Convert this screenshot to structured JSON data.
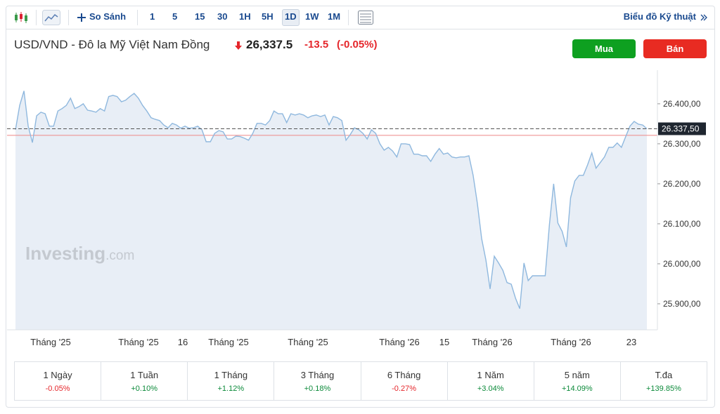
{
  "toolbar": {
    "compare": "So Sánh",
    "intervals": [
      "1",
      "5",
      "15",
      "30",
      "1H",
      "5H",
      "1D",
      "1W",
      "1M"
    ],
    "active_interval": "1D",
    "technical": "Biểu đồ Kỹ thuật"
  },
  "header": {
    "title": "USD/VND - Đô la Mỹ Việt Nam Đồng",
    "price": "26,337.5",
    "change": "-13.5",
    "change_pct": "(-0.05%)",
    "buy": "Mua",
    "sell": "Bán"
  },
  "chart_data": {
    "type": "area",
    "color": "#8fb8de",
    "values": [
      26335,
      26396,
      26432,
      26344,
      26303,
      26370,
      26379,
      26375,
      26344,
      26344,
      26382,
      26388,
      26396,
      26414,
      26388,
      26393,
      26400,
      26384,
      26382,
      26379,
      26388,
      26382,
      26418,
      26421,
      26418,
      26405,
      26409,
      26418,
      26426,
      26414,
      26396,
      26382,
      26365,
      26361,
      26358,
      26347,
      26340,
      26351,
      26347,
      26339,
      26344,
      26339,
      26340,
      26344,
      26335,
      26305,
      26305,
      26326,
      26333,
      26330,
      26312,
      26312,
      26319,
      26318,
      26314,
      26309,
      26326,
      26351,
      26351,
      26347,
      26358,
      26382,
      26375,
      26375,
      26353,
      26375,
      26372,
      26375,
      26372,
      26365,
      26370,
      26372,
      26368,
      26372,
      26347,
      26368,
      26365,
      26358,
      26309,
      26323,
      26340,
      26335,
      26326,
      26312,
      26335,
      26326,
      26300,
      26284,
      26291,
      26282,
      26267,
      26300,
      26300,
      26298,
      26274,
      26274,
      26270,
      26270,
      26256,
      26274,
      26288,
      26274,
      26277,
      26267,
      26265,
      26267,
      26267,
      26270,
      26221,
      26151,
      26063,
      26010,
      25937,
      26019,
      26002,
      25984,
      25953,
      25949,
      25914,
      25888,
      26002,
      25958,
      25970,
      25970,
      25970,
      25970,
      26098,
      26200,
      26102,
      26081,
      26042,
      26165,
      26207,
      26221,
      26221,
      26247,
      26277,
      26239,
      26253,
      26267,
      26291,
      26291,
      26302,
      26291,
      26318,
      26344,
      26356,
      26349,
      26347,
      26337.5
    ],
    "ylim": [
      25835,
      26484
    ],
    "yticks": [
      {
        "value": 25900,
        "label": "25.900,00"
      },
      {
        "value": 26000,
        "label": "26.000,00"
      },
      {
        "value": 26100,
        "label": "26.100,00"
      },
      {
        "value": 26200,
        "label": "26.200,00"
      },
      {
        "value": 26300,
        "label": "26.300,00"
      },
      {
        "value": 26400,
        "label": "26.400,00"
      }
    ],
    "x_labels": [
      "Tháng '25",
      "Tháng '25",
      "16",
      "Tháng '25",
      "Tháng '25",
      "Tháng '26",
      "15",
      "Tháng '26",
      "Tháng '26",
      "23"
    ],
    "last_price": {
      "value": 26337.5,
      "label": "26.337,50"
    },
    "reference_line": 26321,
    "watermark": "Investing",
    "watermark_suffix": ".com"
  },
  "performance": [
    {
      "period": "1 Ngày",
      "change": "-0.05%",
      "color": "#e5262b"
    },
    {
      "period": "1 Tuần",
      "change": "+0.10%",
      "color": "#0c8a3a"
    },
    {
      "period": "1 Tháng",
      "change": "+1.12%",
      "color": "#0c8a3a"
    },
    {
      "period": "3 Tháng",
      "change": "+0.18%",
      "color": "#0c8a3a"
    },
    {
      "period": "6 Tháng",
      "change": "-0.27%",
      "color": "#e5262b"
    },
    {
      "period": "1 Năm",
      "change": "+3.04%",
      "color": "#0c8a3a"
    },
    {
      "period": "5 năm",
      "change": "+14.09%",
      "color": "#0c8a3a"
    },
    {
      "period": "T.đa",
      "change": "+139.85%",
      "color": "#0c8a3a"
    }
  ]
}
